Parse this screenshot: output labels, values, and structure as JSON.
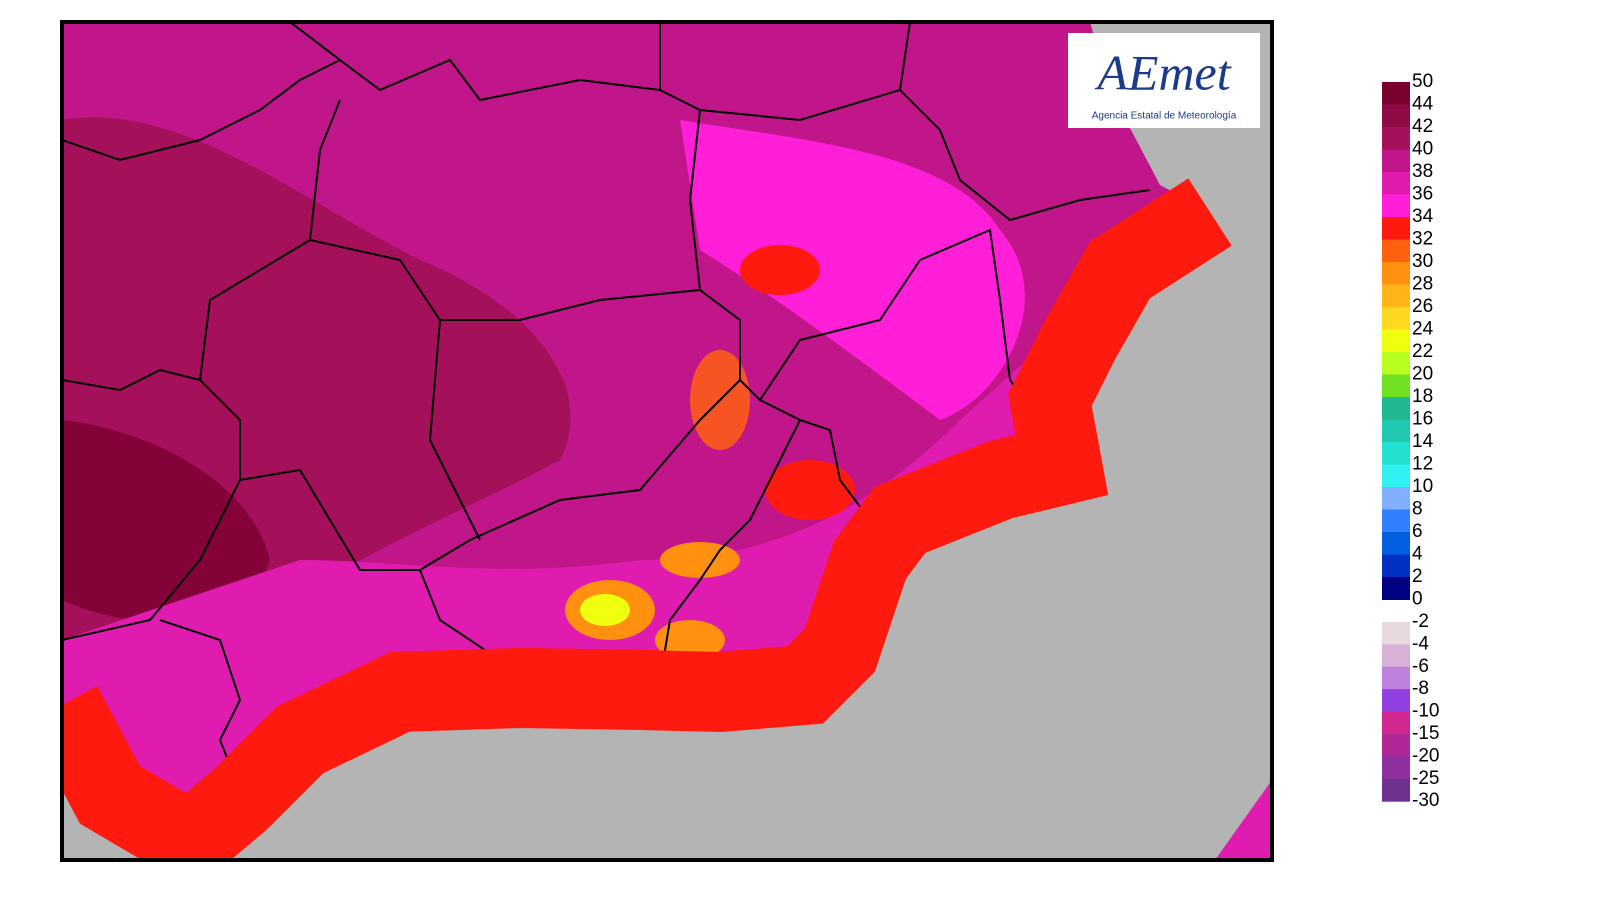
{
  "logo": {
    "name": "AEmet",
    "subtitle": "Agencia Estatal de Meteorología"
  },
  "legend": {
    "positive": {
      "labels": [
        50,
        44,
        42,
        40,
        38,
        36,
        34,
        32,
        30,
        28,
        26,
        24,
        22,
        20,
        18,
        16,
        14,
        12,
        10,
        8,
        6,
        4,
        2,
        0
      ],
      "bin_colors": [
        "#7a0030",
        "#8e0a45",
        "#a5105a",
        "#c0168a",
        "#e01cb0",
        "#ff1fd8",
        "#ff1a10",
        "#ff6010",
        "#ff9010",
        "#ffb418",
        "#ffd820",
        "#f0ff10",
        "#b8ff20",
        "#70e020",
        "#20b890",
        "#20c8b0",
        "#20e0d0",
        "#30f0f0",
        "#80b0ff",
        "#3080ff",
        "#0060e0",
        "#0030c0",
        "#000080"
      ]
    },
    "negative": {
      "labels": [
        -2,
        -4,
        -6,
        -8,
        -10,
        -15,
        -20,
        -25,
        -30
      ],
      "bin_colors": [
        "#e8d8e0",
        "#d8b0d8",
        "#c080e0",
        "#9040e0",
        "#d02890",
        "#b02898",
        "#9030a0",
        "#703090"
      ]
    }
  }
}
